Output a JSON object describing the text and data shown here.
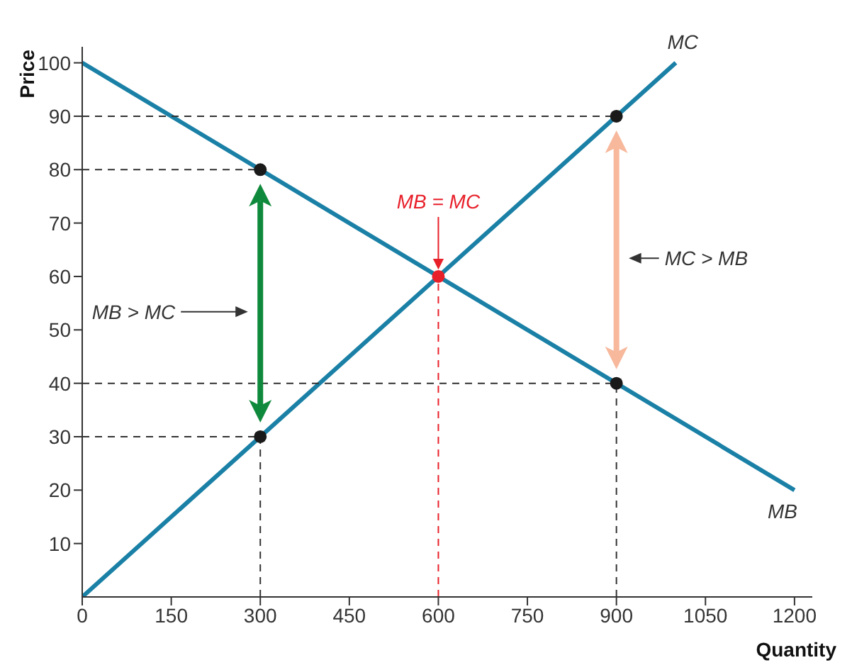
{
  "chart_data": {
    "type": "line",
    "xlabel": "Quantity",
    "ylabel": "Price",
    "xlim": [
      0,
      1230
    ],
    "ylim": [
      0,
      103
    ],
    "xticks": [
      0,
      150,
      300,
      450,
      600,
      750,
      900,
      1050,
      1200
    ],
    "yticks": [
      10,
      20,
      30,
      40,
      50,
      60,
      70,
      80,
      90,
      100
    ],
    "line_style": "solid",
    "series": [
      {
        "name": "MB",
        "color": "#1a80a6",
        "x": [
          0,
          1200
        ],
        "values": [
          100,
          20
        ]
      },
      {
        "name": "MC",
        "color": "#1a80a6",
        "x": [
          0,
          1000
        ],
        "values": [
          0,
          100
        ]
      },
      {
        "color": "#333333",
        "x": [
          0,
          300
        ],
        "values": [
          80,
          80
        ],
        "line_style": "dashed"
      },
      {
        "color": "#333333",
        "x": [
          0,
          300
        ],
        "values": [
          30,
          30
        ],
        "line_style": "dashed"
      },
      {
        "color": "#333333",
        "x": [
          300,
          300
        ],
        "values": [
          0,
          30
        ],
        "line_style": "dashed"
      },
      {
        "color": "#333333",
        "x": [
          0,
          900
        ],
        "values": [
          90,
          90
        ],
        "line_style": "dashed"
      },
      {
        "color": "#333333",
        "x": [
          0,
          900
        ],
        "values": [
          40,
          40
        ],
        "line_style": "dashed"
      },
      {
        "color": "#333333",
        "x": [
          900,
          900
        ],
        "values": [
          0,
          40
        ],
        "line_style": "dashed"
      },
      {
        "color": "#e8202a",
        "x": [
          600,
          600
        ],
        "values": [
          0,
          60
        ],
        "line_style": "dashed"
      },
      {
        "type": "scatter",
        "color": "#1a1a1a",
        "x": [
          300,
          300,
          900,
          900
        ],
        "values": [
          80,
          30,
          90,
          40
        ],
        "marker": "circle"
      },
      {
        "type": "scatter",
        "color": "#e8202a",
        "x": [
          600
        ],
        "values": [
          60
        ],
        "marker": "circle"
      }
    ],
    "annotations": [
      "MB > MC",
      "MC > MB",
      "MB = MC"
    ]
  }
}
